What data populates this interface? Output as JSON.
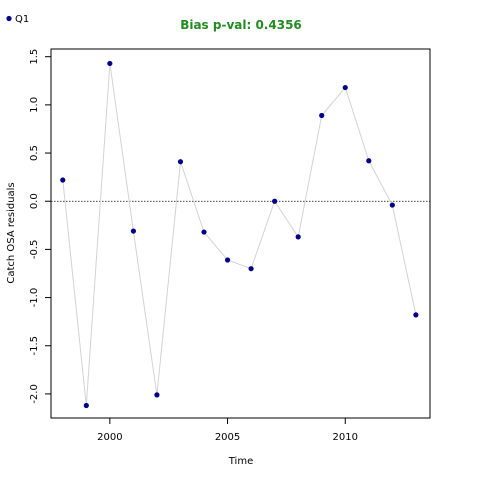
{
  "chart_data": {
    "type": "scatter",
    "title": "Bias p-val: 0.4356",
    "xlabel": "Time",
    "ylabel": "Catch OSA residuals",
    "xlim": [
      1997.5,
      2013.6
    ],
    "ylim": [
      -2.25,
      1.58
    ],
    "xticks": [
      2000,
      2005,
      2010
    ],
    "yticks": [
      -2.0,
      -1.5,
      -1.0,
      -0.5,
      0.0,
      0.5,
      1.0,
      1.5
    ],
    "ytick_labels": [
      "-2.0",
      "-1.5",
      "-1.0",
      "-0.5",
      "0.0",
      "0.5",
      "1.0",
      "1.5"
    ],
    "reference_line": 0,
    "grid": false,
    "legend_position": "top-left",
    "title_color": "#228B22",
    "point_color": "#00008B",
    "line_color": "#D3D3D3",
    "series": [
      {
        "name": "Q1",
        "x": [
          1998,
          1999,
          2000,
          2001,
          2002,
          2003,
          2004,
          2005,
          2006,
          2007,
          2008,
          2009,
          2010,
          2011,
          2012,
          2013
        ],
        "y": [
          0.22,
          -2.12,
          1.43,
          -0.31,
          -2.01,
          0.41,
          -0.32,
          -0.61,
          -0.7,
          0.0,
          -0.37,
          0.89,
          1.18,
          0.42,
          -0.04,
          -1.18
        ]
      }
    ]
  }
}
